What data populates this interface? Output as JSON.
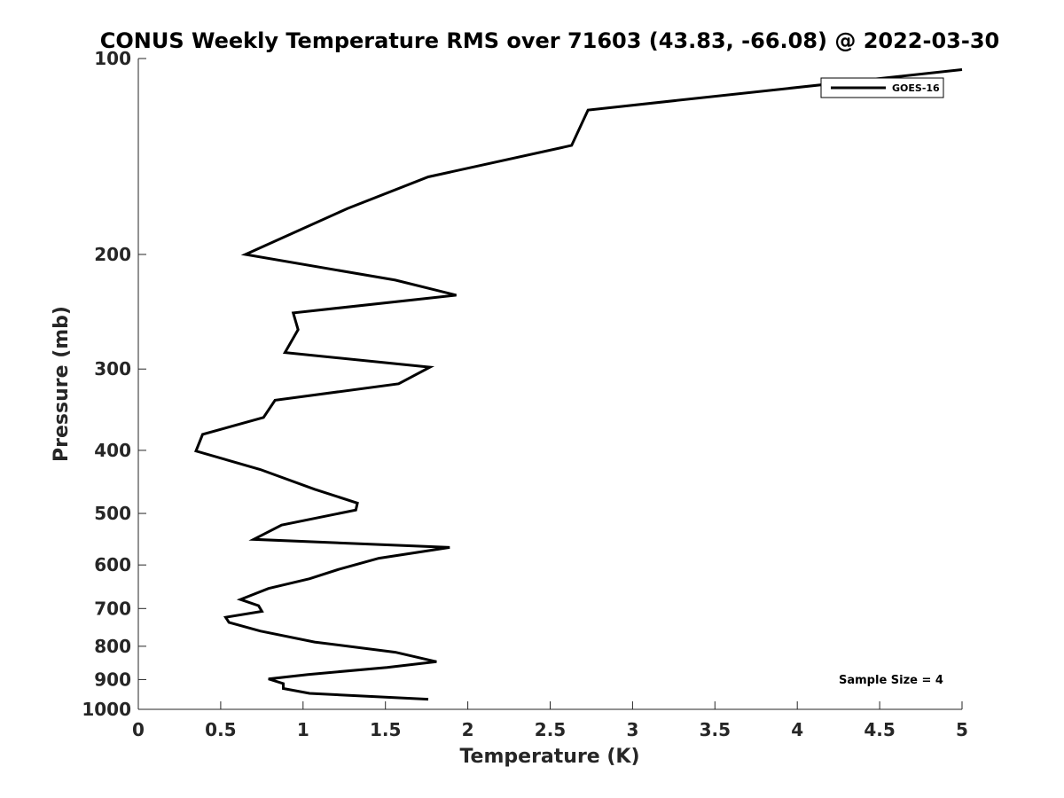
{
  "chart_data": {
    "type": "line",
    "title": "CONUS Weekly Temperature RMS over 71603 (43.83, -66.08) @ 2022-03-30",
    "xlabel": "Temperature (K)",
    "ylabel": "Pressure (mb)",
    "xlim": [
      0,
      5
    ],
    "ylim": [
      100,
      1000
    ],
    "yscale": "log",
    "yreversed": true,
    "x_ticks": [
      "0",
      "0.5",
      "1",
      "1.5",
      "2",
      "2.5",
      "3",
      "3.5",
      "4",
      "4.5",
      "5"
    ],
    "y_ticks": [
      "100",
      "200",
      "300",
      "400",
      "500",
      "600",
      "700",
      "800",
      "900",
      "1000"
    ],
    "grid": false,
    "legend": {
      "position": "top-right",
      "entries": [
        "GOES-16"
      ]
    },
    "annotation": "Sample Size = 4",
    "series": [
      {
        "name": "GOES-16",
        "color": "#000000",
        "points": [
          [
            5.0,
            104
          ],
          [
            2.73,
            120
          ],
          [
            2.63,
            136
          ],
          [
            1.76,
            152
          ],
          [
            1.27,
            170
          ],
          [
            0.65,
            200
          ],
          [
            1.56,
            219
          ],
          [
            1.93,
            231
          ],
          [
            0.94,
            246
          ],
          [
            0.97,
            261
          ],
          [
            0.89,
            283
          ],
          [
            1.77,
            298
          ],
          [
            1.58,
            316
          ],
          [
            0.83,
            335
          ],
          [
            0.76,
            356
          ],
          [
            0.39,
            378
          ],
          [
            0.35,
            401
          ],
          [
            0.74,
            428
          ],
          [
            1.07,
            459
          ],
          [
            1.33,
            482
          ],
          [
            1.32,
            494
          ],
          [
            0.87,
            521
          ],
          [
            0.7,
            548
          ],
          [
            1.89,
            564
          ],
          [
            1.46,
            586
          ],
          [
            1.22,
            609
          ],
          [
            1.04,
            630
          ],
          [
            0.79,
            652
          ],
          [
            0.62,
            678
          ],
          [
            0.73,
            693
          ],
          [
            0.75,
            707
          ],
          [
            0.53,
            722
          ],
          [
            0.55,
            735
          ],
          [
            0.74,
            758
          ],
          [
            1.07,
            788
          ],
          [
            1.56,
            817
          ],
          [
            1.81,
            845
          ],
          [
            1.51,
            862
          ],
          [
            1.03,
            884
          ],
          [
            0.79,
            898
          ],
          [
            0.88,
            913
          ],
          [
            0.88,
            929
          ],
          [
            1.04,
            945
          ],
          [
            1.76,
            965
          ]
        ]
      }
    ]
  }
}
